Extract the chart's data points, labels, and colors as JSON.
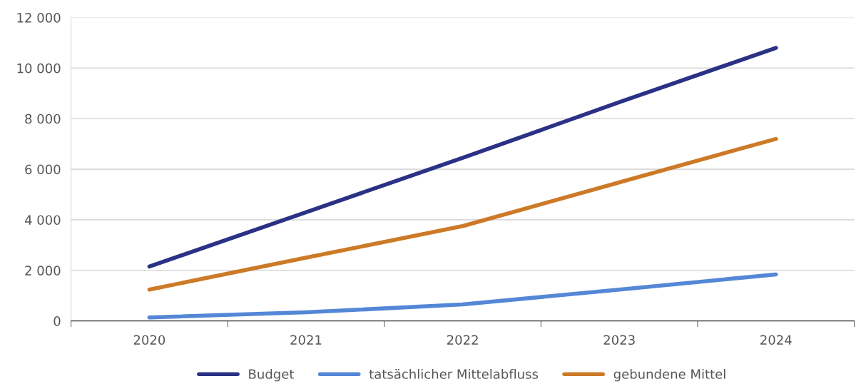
{
  "chart_data": {
    "type": "line",
    "categories": [
      "2020",
      "2021",
      "2022",
      "2023",
      "2024"
    ],
    "series": [
      {
        "name": "Budget",
        "color": "#2b3185",
        "values": [
          2150,
          4300,
          6450,
          8650,
          10800
        ]
      },
      {
        "name": "tatsächlicher Mittelabfluss",
        "color": "#5487d6",
        "values": [
          140,
          340,
          650,
          1240,
          1840
        ]
      },
      {
        "name": "gebundene Mittel",
        "color": "#cd7a28",
        "values": [
          1240,
          2500,
          3750,
          5480,
          7200
        ]
      }
    ],
    "ylim": [
      0,
      12000
    ],
    "yticks": [
      0,
      {
        "value": 2000,
        "label": "2 000"
      },
      {
        "value": 4000,
        "label": "4 000"
      },
      {
        "value": 6000,
        "label": "6 000"
      },
      {
        "value": 8000,
        "label": "8 000"
      },
      {
        "value": 10000,
        "label": "10 000"
      },
      {
        "value": 12000,
        "label": "12 000"
      }
    ],
    "grid": "y",
    "legend": "bottom",
    "marker": "none",
    "line_style": "solid"
  }
}
